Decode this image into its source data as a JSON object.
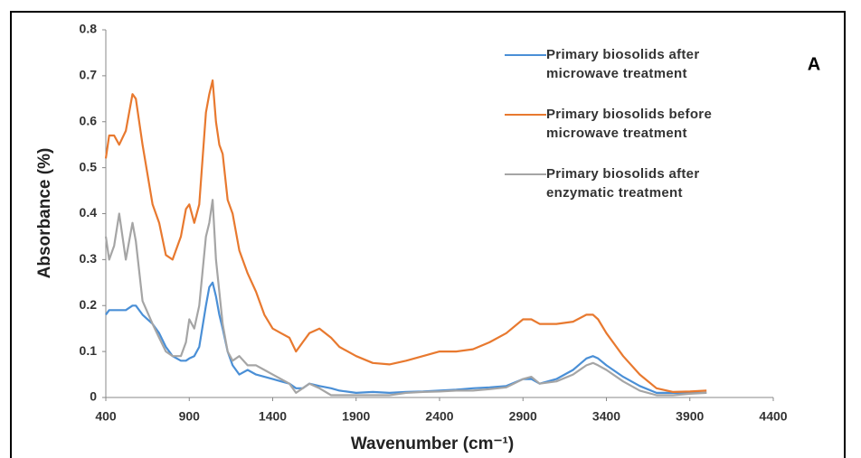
{
  "chart_data": {
    "type": "line",
    "annotation": "A",
    "xlabel": "Wavenumber (cm⁻¹)",
    "ylabel": "Absorbance (%)",
    "x": [
      400,
      420,
      450,
      480,
      520,
      560,
      580,
      620,
      680,
      720,
      760,
      800,
      850,
      880,
      900,
      930,
      960,
      1000,
      1020,
      1040,
      1060,
      1080,
      1100,
      1130,
      1160,
      1200,
      1250,
      1300,
      1350,
      1400,
      1450,
      1500,
      1540,
      1580,
      1620,
      1680,
      1750,
      1800,
      1900,
      2000,
      2100,
      2200,
      2300,
      2400,
      2500,
      2600,
      2700,
      2800,
      2900,
      2950,
      3000,
      3100,
      3200,
      3280,
      3320,
      3350,
      3400,
      3500,
      3600,
      3700,
      3800,
      3900,
      4000
    ],
    "series": [
      {
        "name": "Primary biosolids after microwave treatment",
        "color": "#4a8fd6",
        "values": [
          0.18,
          0.19,
          0.19,
          0.19,
          0.19,
          0.2,
          0.2,
          0.18,
          0.16,
          0.14,
          0.11,
          0.09,
          0.08,
          0.08,
          0.085,
          0.09,
          0.11,
          0.2,
          0.24,
          0.25,
          0.22,
          0.18,
          0.15,
          0.1,
          0.07,
          0.05,
          0.06,
          0.05,
          0.045,
          0.04,
          0.035,
          0.03,
          0.02,
          0.02,
          0.03,
          0.025,
          0.02,
          0.015,
          0.01,
          0.012,
          0.01,
          0.012,
          0.013,
          0.015,
          0.017,
          0.02,
          0.022,
          0.025,
          0.04,
          0.04,
          0.03,
          0.04,
          0.06,
          0.085,
          0.09,
          0.085,
          0.07,
          0.045,
          0.025,
          0.01,
          0.01,
          0.01,
          0.01
        ]
      },
      {
        "name": "Primary biosolids before microwave treatment",
        "color": "#e8792f",
        "values": [
          0.52,
          0.57,
          0.57,
          0.55,
          0.58,
          0.66,
          0.65,
          0.55,
          0.42,
          0.38,
          0.31,
          0.3,
          0.35,
          0.41,
          0.42,
          0.38,
          0.42,
          0.62,
          0.66,
          0.69,
          0.6,
          0.55,
          0.53,
          0.43,
          0.4,
          0.32,
          0.27,
          0.23,
          0.18,
          0.15,
          0.14,
          0.13,
          0.1,
          0.12,
          0.14,
          0.15,
          0.13,
          0.11,
          0.09,
          0.075,
          0.072,
          0.08,
          0.09,
          0.1,
          0.1,
          0.105,
          0.12,
          0.14,
          0.17,
          0.17,
          0.16,
          0.16,
          0.165,
          0.18,
          0.18,
          0.17,
          0.14,
          0.09,
          0.05,
          0.02,
          0.012,
          0.013,
          0.015
        ]
      },
      {
        "name": "Primary biosolids after enzymatic treatment",
        "color": "#a5a5a5",
        "values": [
          0.35,
          0.3,
          0.33,
          0.4,
          0.3,
          0.38,
          0.34,
          0.21,
          0.16,
          0.13,
          0.1,
          0.09,
          0.09,
          0.12,
          0.17,
          0.15,
          0.2,
          0.35,
          0.38,
          0.43,
          0.3,
          0.23,
          0.16,
          0.1,
          0.08,
          0.09,
          0.07,
          0.07,
          0.06,
          0.05,
          0.04,
          0.03,
          0.01,
          0.02,
          0.03,
          0.02,
          0.005,
          0.005,
          0.005,
          0.005,
          0.005,
          0.01,
          0.012,
          0.013,
          0.015,
          0.015,
          0.018,
          0.022,
          0.04,
          0.045,
          0.03,
          0.035,
          0.05,
          0.07,
          0.075,
          0.07,
          0.06,
          0.035,
          0.015,
          0.005,
          0.005,
          0.008,
          0.01
        ]
      }
    ],
    "xlim": [
      400,
      4400
    ],
    "xticks": [
      400,
      900,
      1400,
      1900,
      2400,
      2900,
      3400,
      3900,
      4400
    ],
    "ylim": [
      0,
      0.8
    ],
    "yticks": [
      0,
      0.1,
      0.2,
      0.3,
      0.4,
      0.5,
      0.6,
      0.7,
      0.8
    ],
    "grid": false
  }
}
